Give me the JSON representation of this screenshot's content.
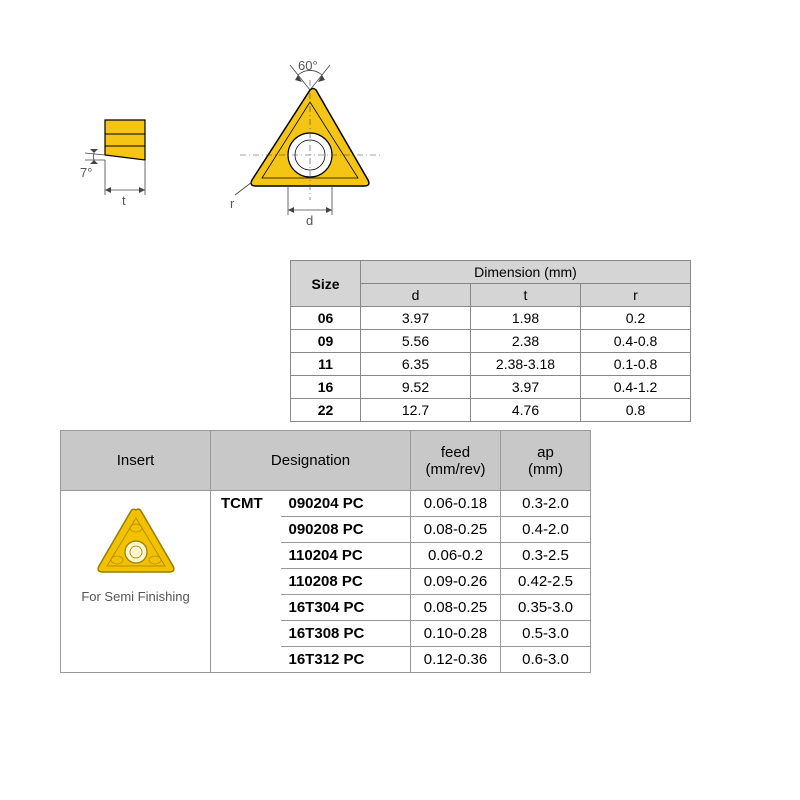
{
  "diagram": {
    "angle_top": "60°",
    "angle_side": "7°",
    "label_t": "t",
    "label_r": "r",
    "label_d": "d",
    "insert_fill": "#f5c516",
    "insert_stroke": "#000000",
    "insert_highlight": "#faf0b0",
    "hole_fill": "#ffffff",
    "line_color": "#444444"
  },
  "size_table": {
    "header_size": "Size",
    "header_dimension": "Dimension (mm)",
    "subheaders": {
      "d": "d",
      "t": "t",
      "r": "r"
    },
    "rows": [
      {
        "size": "06",
        "d": "3.97",
        "t": "1.98",
        "r": "0.2"
      },
      {
        "size": "09",
        "d": "5.56",
        "t": "2.38",
        "r": "0.4-0.8"
      },
      {
        "size": "11",
        "d": "6.35",
        "t": "2.38-3.18",
        "r": "0.1-0.8"
      },
      {
        "size": "16",
        "d": "9.52",
        "t": "3.97",
        "r": "0.4-1.2"
      },
      {
        "size": "22",
        "d": "12.7",
        "t": "4.76",
        "r": "0.8"
      }
    ]
  },
  "main_table": {
    "header_insert": "Insert",
    "header_designation": "Designation",
    "header_feed": "feed\n(mm/rev)",
    "header_ap": "ap\n(mm)",
    "insert_caption": "For Semi Finishing",
    "code": "TCMT",
    "rows": [
      {
        "num": "090204 PC",
        "feed": "0.06-0.18",
        "ap": "0.3-2.0"
      },
      {
        "num": "090208 PC",
        "feed": "0.08-0.25",
        "ap": "0.4-2.0"
      },
      {
        "num": "110204 PC",
        "feed": "0.06-0.2",
        "ap": "0.3-2.5"
      },
      {
        "num": "110208 PC",
        "feed": "0.09-0.26",
        "ap": "0.42-2.5"
      },
      {
        "num": "16T304 PC",
        "feed": "0.08-0.25",
        "ap": "0.35-3.0"
      },
      {
        "num": "16T308 PC",
        "feed": "0.10-0.28",
        "ap": "0.5-3.0"
      },
      {
        "num": "16T312 PC",
        "feed": "0.12-0.36",
        "ap": "0.6-3.0"
      }
    ]
  },
  "colors": {
    "header_bg": "#c8c8c8",
    "size_header_bg": "#d5d5d5",
    "border": "#888888"
  }
}
